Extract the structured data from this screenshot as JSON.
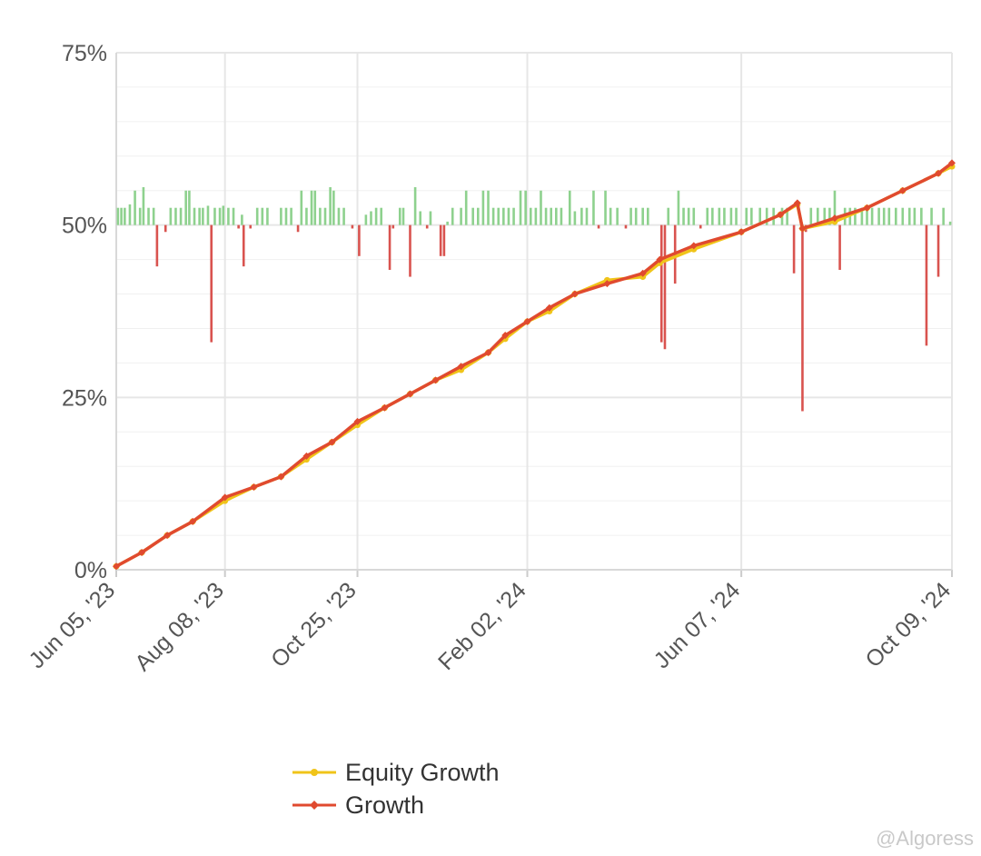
{
  "chart_data": {
    "type": "line",
    "x_axis": {
      "type": "date",
      "range": [
        "2023-06-05",
        "2024-10-09"
      ],
      "ticks": [
        {
          "date": "2023-06-05",
          "label": "Jun 05, '23"
        },
        {
          "date": "2023-08-08",
          "label": "Aug 08, '23"
        },
        {
          "date": "2023-10-25",
          "label": "Oct 25, '23"
        },
        {
          "date": "2024-02-02",
          "label": "Feb 02, '24"
        },
        {
          "date": "2024-06-07",
          "label": "Jun 07, '24"
        },
        {
          "date": "2024-10-09",
          "label": "Oct 09, '24"
        }
      ]
    },
    "y_axis": {
      "range": [
        0,
        75
      ],
      "ticks": [
        {
          "value": 0,
          "label": "0%"
        },
        {
          "value": 25,
          "label": "25%"
        },
        {
          "value": 50,
          "label": "50%"
        },
        {
          "value": 75,
          "label": "75%"
        }
      ],
      "minor_step": 5
    },
    "grid": true,
    "bar_baseline": 50,
    "series": [
      {
        "name": "Equity Growth",
        "color": "#f0c419",
        "points": [
          [
            "2023-06-05",
            0.5
          ],
          [
            "2023-06-20",
            2.5
          ],
          [
            "2023-07-05",
            5.0
          ],
          [
            "2023-07-20",
            7.0
          ],
          [
            "2023-08-08",
            10.0
          ],
          [
            "2023-08-25",
            12.0
          ],
          [
            "2023-09-10",
            13.5
          ],
          [
            "2023-09-25",
            16.0
          ],
          [
            "2023-10-10",
            18.5
          ],
          [
            "2023-10-25",
            21.0
          ],
          [
            "2023-11-10",
            23.5
          ],
          [
            "2023-11-25",
            25.5
          ],
          [
            "2023-12-10",
            27.5
          ],
          [
            "2023-12-25",
            29.0
          ],
          [
            "2024-01-10",
            31.5
          ],
          [
            "2024-01-20",
            33.5
          ],
          [
            "2024-02-02",
            36.0
          ],
          [
            "2024-02-15",
            37.5
          ],
          [
            "2024-03-01",
            40.0
          ],
          [
            "2024-03-20",
            42.0
          ],
          [
            "2024-04-10",
            42.5
          ],
          [
            "2024-04-20",
            44.5
          ],
          [
            "2024-05-10",
            46.5
          ],
          [
            "2024-06-07",
            49.0
          ],
          [
            "2024-06-30",
            51.5
          ],
          [
            "2024-07-10",
            53.0
          ],
          [
            "2024-07-13",
            49.5
          ],
          [
            "2024-08-01",
            50.5
          ],
          [
            "2024-08-20",
            52.5
          ],
          [
            "2024-09-10",
            55.0
          ],
          [
            "2024-10-01",
            57.5
          ],
          [
            "2024-10-09",
            58.5
          ]
        ]
      },
      {
        "name": "Growth",
        "color": "#e04a2f",
        "points": [
          [
            "2023-06-05",
            0.5
          ],
          [
            "2023-06-20",
            2.5
          ],
          [
            "2023-07-05",
            5.0
          ],
          [
            "2023-07-20",
            7.0
          ],
          [
            "2023-08-08",
            10.5
          ],
          [
            "2023-08-25",
            12.0
          ],
          [
            "2023-09-10",
            13.5
          ],
          [
            "2023-09-25",
            16.5
          ],
          [
            "2023-10-10",
            18.5
          ],
          [
            "2023-10-25",
            21.5
          ],
          [
            "2023-11-10",
            23.5
          ],
          [
            "2023-11-25",
            25.5
          ],
          [
            "2023-12-10",
            27.5
          ],
          [
            "2023-12-25",
            29.5
          ],
          [
            "2024-01-10",
            31.5
          ],
          [
            "2024-01-20",
            34.0
          ],
          [
            "2024-02-02",
            36.0
          ],
          [
            "2024-02-15",
            38.0
          ],
          [
            "2024-03-01",
            40.0
          ],
          [
            "2024-03-20",
            41.5
          ],
          [
            "2024-04-10",
            43.0
          ],
          [
            "2024-04-20",
            45.0
          ],
          [
            "2024-05-10",
            47.0
          ],
          [
            "2024-06-07",
            49.0
          ],
          [
            "2024-06-30",
            51.5
          ],
          [
            "2024-07-10",
            53.2
          ],
          [
            "2024-07-13",
            49.5
          ],
          [
            "2024-08-01",
            51.0
          ],
          [
            "2024-08-20",
            52.5
          ],
          [
            "2024-09-10",
            55.0
          ],
          [
            "2024-10-01",
            57.5
          ],
          [
            "2024-10-09",
            59.0
          ]
        ]
      }
    ],
    "bars": [
      [
        "2023-06-06",
        2.5
      ],
      [
        "2023-06-08",
        2.5
      ],
      [
        "2023-06-10",
        2.5
      ],
      [
        "2023-06-13",
        3.0
      ],
      [
        "2023-06-16",
        5.0
      ],
      [
        "2023-06-19",
        2.5
      ],
      [
        "2023-06-21",
        5.5
      ],
      [
        "2023-06-24",
        2.5
      ],
      [
        "2023-06-27",
        2.5
      ],
      [
        "2023-06-29",
        -6.0
      ],
      [
        "2023-07-04",
        -1.0
      ],
      [
        "2023-07-07",
        2.5
      ],
      [
        "2023-07-10",
        2.5
      ],
      [
        "2023-07-13",
        2.5
      ],
      [
        "2023-07-16",
        5.0
      ],
      [
        "2023-07-18",
        5.0
      ],
      [
        "2023-07-21",
        2.5
      ],
      [
        "2023-07-24",
        2.5
      ],
      [
        "2023-07-26",
        2.5
      ],
      [
        "2023-07-29",
        2.8
      ],
      [
        "2023-07-31",
        -17.0
      ],
      [
        "2023-08-02",
        2.5
      ],
      [
        "2023-08-05",
        2.5
      ],
      [
        "2023-08-07",
        2.8
      ],
      [
        "2023-08-10",
        2.5
      ],
      [
        "2023-08-13",
        2.5
      ],
      [
        "2023-08-16",
        -0.5
      ],
      [
        "2023-08-18",
        1.5
      ],
      [
        "2023-08-19",
        -6.0
      ],
      [
        "2023-08-23",
        -0.5
      ],
      [
        "2023-08-27",
        2.5
      ],
      [
        "2023-08-30",
        2.5
      ],
      [
        "2023-09-02",
        2.5
      ],
      [
        "2023-09-10",
        2.5
      ],
      [
        "2023-09-13",
        2.5
      ],
      [
        "2023-09-16",
        2.5
      ],
      [
        "2023-09-20",
        -1.0
      ],
      [
        "2023-09-22",
        5.0
      ],
      [
        "2023-09-25",
        2.5
      ],
      [
        "2023-09-28",
        5.0
      ],
      [
        "2023-09-30",
        5.0
      ],
      [
        "2023-10-03",
        2.5
      ],
      [
        "2023-10-06",
        2.5
      ],
      [
        "2023-10-09",
        5.5
      ],
      [
        "2023-10-11",
        5.0
      ],
      [
        "2023-10-14",
        2.5
      ],
      [
        "2023-10-17",
        2.5
      ],
      [
        "2023-10-22",
        -0.5
      ],
      [
        "2023-10-26",
        -4.5
      ],
      [
        "2023-10-30",
        1.5
      ],
      [
        "2023-11-02",
        2.0
      ],
      [
        "2023-11-05",
        2.5
      ],
      [
        "2023-11-08",
        2.5
      ],
      [
        "2023-11-13",
        -6.5
      ],
      [
        "2023-11-15",
        -0.5
      ],
      [
        "2023-11-19",
        2.5
      ],
      [
        "2023-11-21",
        2.5
      ],
      [
        "2023-11-25",
        -7.5
      ],
      [
        "2023-11-28",
        5.5
      ],
      [
        "2023-12-01",
        2.0
      ],
      [
        "2023-12-05",
        -0.5
      ],
      [
        "2023-12-07",
        2.0
      ],
      [
        "2023-12-13",
        -4.5
      ],
      [
        "2023-12-15",
        -4.5
      ],
      [
        "2023-12-17",
        0.5
      ],
      [
        "2023-12-20",
        2.5
      ],
      [
        "2023-12-25",
        2.5
      ],
      [
        "2023-12-28",
        5.0
      ],
      [
        "2024-01-01",
        2.5
      ],
      [
        "2024-01-04",
        2.5
      ],
      [
        "2024-01-07",
        5.0
      ],
      [
        "2024-01-10",
        5.0
      ],
      [
        "2024-01-13",
        2.5
      ],
      [
        "2024-01-16",
        2.5
      ],
      [
        "2024-01-19",
        2.5
      ],
      [
        "2024-01-22",
        2.5
      ],
      [
        "2024-01-25",
        2.5
      ],
      [
        "2024-01-29",
        5.0
      ],
      [
        "2024-02-01",
        5.0
      ],
      [
        "2024-02-04",
        2.5
      ],
      [
        "2024-02-07",
        2.5
      ],
      [
        "2024-02-10",
        5.0
      ],
      [
        "2024-02-13",
        2.5
      ],
      [
        "2024-02-16",
        2.5
      ],
      [
        "2024-02-19",
        2.5
      ],
      [
        "2024-02-22",
        2.5
      ],
      [
        "2024-02-27",
        5.0
      ],
      [
        "2024-03-01",
        2.0
      ],
      [
        "2024-03-05",
        2.5
      ],
      [
        "2024-03-08",
        2.5
      ],
      [
        "2024-03-12",
        5.0
      ],
      [
        "2024-03-15",
        -0.5
      ],
      [
        "2024-03-19",
        5.0
      ],
      [
        "2024-03-22",
        2.5
      ],
      [
        "2024-03-26",
        2.5
      ],
      [
        "2024-03-31",
        -0.5
      ],
      [
        "2024-04-03",
        2.5
      ],
      [
        "2024-04-06",
        2.5
      ],
      [
        "2024-04-10",
        2.5
      ],
      [
        "2024-04-13",
        2.5
      ],
      [
        "2024-04-21",
        -17.0
      ],
      [
        "2024-04-23",
        -18.0
      ],
      [
        "2024-04-25",
        2.5
      ],
      [
        "2024-04-29",
        -8.5
      ],
      [
        "2024-05-01",
        5.0
      ],
      [
        "2024-05-04",
        2.5
      ],
      [
        "2024-05-07",
        2.5
      ],
      [
        "2024-05-10",
        2.5
      ],
      [
        "2024-05-14",
        -0.5
      ],
      [
        "2024-05-18",
        2.5
      ],
      [
        "2024-05-21",
        2.5
      ],
      [
        "2024-05-25",
        2.5
      ],
      [
        "2024-05-28",
        2.5
      ],
      [
        "2024-06-01",
        2.5
      ],
      [
        "2024-06-04",
        2.5
      ],
      [
        "2024-06-10",
        2.5
      ],
      [
        "2024-06-13",
        2.5
      ],
      [
        "2024-06-18",
        2.5
      ],
      [
        "2024-06-22",
        2.5
      ],
      [
        "2024-06-26",
        2.5
      ],
      [
        "2024-07-01",
        2.5
      ],
      [
        "2024-07-04",
        2.5
      ],
      [
        "2024-07-08",
        -7.0
      ],
      [
        "2024-07-13",
        -27.0
      ],
      [
        "2024-07-15",
        -1.0
      ],
      [
        "2024-07-18",
        2.5
      ],
      [
        "2024-07-22",
        2.5
      ],
      [
        "2024-07-26",
        2.5
      ],
      [
        "2024-07-29",
        2.5
      ],
      [
        "2024-08-01",
        5.0
      ],
      [
        "2024-08-04",
        -6.5
      ],
      [
        "2024-08-07",
        2.5
      ],
      [
        "2024-08-10",
        2.5
      ],
      [
        "2024-08-13",
        2.5
      ],
      [
        "2024-08-17",
        2.5
      ],
      [
        "2024-08-20",
        2.5
      ],
      [
        "2024-08-23",
        2.5
      ],
      [
        "2024-08-27",
        2.5
      ],
      [
        "2024-08-30",
        2.5
      ],
      [
        "2024-09-02",
        2.5
      ],
      [
        "2024-09-06",
        2.5
      ],
      [
        "2024-09-10",
        2.5
      ],
      [
        "2024-09-14",
        2.5
      ],
      [
        "2024-09-17",
        2.5
      ],
      [
        "2024-09-21",
        2.5
      ],
      [
        "2024-09-24",
        -17.5
      ],
      [
        "2024-09-27",
        2.5
      ],
      [
        "2024-10-01",
        -7.5
      ],
      [
        "2024-10-04",
        2.5
      ],
      [
        "2024-10-08",
        0.5
      ]
    ]
  },
  "legend": [
    {
      "label": "Equity Growth",
      "color": "#f0c419"
    },
    {
      "label": "Growth",
      "color": "#e04a2f"
    }
  ],
  "watermark": "@Algoress"
}
